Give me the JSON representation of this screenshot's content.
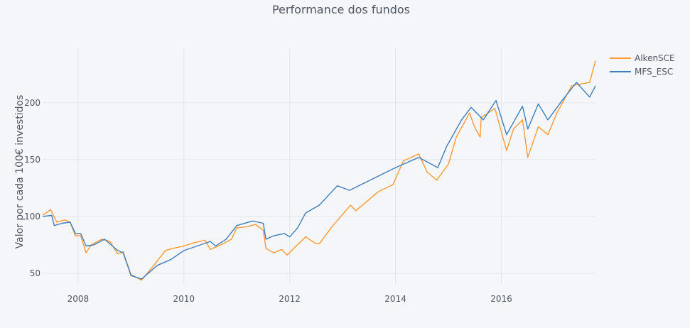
{
  "chart_data": {
    "type": "line",
    "title": "Performance dos fundos",
    "xlabel": "",
    "ylabel": "Valor por cada 100€ investidos",
    "xlim": [
      2007.33,
      2017.78
    ],
    "ylim": [
      40.6,
      248
    ],
    "grid": true,
    "legend_position": "top-right",
    "x_ticks": [
      2008,
      2010,
      2012,
      2014,
      2016
    ],
    "x_tick_labels": [
      "2008",
      "2010",
      "2012",
      "2014",
      "2016"
    ],
    "y_ticks": [
      50,
      100,
      150,
      200
    ],
    "y_tick_labels": [
      "50",
      "100",
      "150",
      "200"
    ],
    "series": [
      {
        "name": "AlkenSCE",
        "color": "#ff9933",
        "x": [
          2007.33,
          2007.48,
          2007.6,
          2007.75,
          2007.85,
          2007.95,
          2008.05,
          2008.15,
          2008.25,
          2008.45,
          2008.6,
          2008.75,
          2008.85,
          2009.0,
          2009.2,
          2009.45,
          2009.65,
          2009.8,
          2010.0,
          2010.2,
          2010.4,
          2010.5,
          2010.7,
          2010.9,
          2011.0,
          2011.2,
          2011.35,
          2011.5,
          2011.55,
          2011.7,
          2011.85,
          2011.95,
          2012.1,
          2012.3,
          2012.5,
          2012.56,
          2012.8,
          2013.15,
          2013.25,
          2013.68,
          2013.95,
          2014.15,
          2014.44,
          2014.6,
          2014.78,
          2015.0,
          2015.15,
          2015.4,
          2015.5,
          2015.6,
          2015.62,
          2015.88,
          2016.1,
          2016.23,
          2016.4,
          2016.5,
          2016.7,
          2016.88,
          2017.05,
          2017.33,
          2017.67,
          2017.78
        ],
        "values": [
          101,
          106,
          95,
          97,
          95,
          83,
          83,
          68,
          75,
          80,
          78,
          67,
          69,
          49,
          44,
          58,
          70,
          72,
          74,
          77,
          79,
          71,
          75,
          80,
          90,
          91,
          93,
          88,
          72,
          68,
          71,
          66,
          73,
          82,
          76,
          76,
          91,
          110,
          105,
          122,
          128,
          149,
          155,
          139,
          132,
          146,
          170,
          191,
          178,
          170,
          187,
          195,
          158,
          177,
          185,
          152,
          179,
          172,
          191,
          215,
          218,
          237
        ]
      },
      {
        "name": "MFS_ESC",
        "color": "#3d7ebf",
        "x": [
          2007.33,
          2007.5,
          2007.55,
          2007.7,
          2007.85,
          2007.95,
          2008.05,
          2008.15,
          2008.3,
          2008.5,
          2008.75,
          2008.85,
          2008.95,
          2009.0,
          2009.2,
          2009.5,
          2009.75,
          2010.0,
          2010.5,
          2010.6,
          2010.8,
          2011.0,
          2011.3,
          2011.5,
          2011.55,
          2011.7,
          2011.9,
          2012.0,
          2012.15,
          2012.3,
          2012.56,
          2012.9,
          2013.13,
          2014.0,
          2014.44,
          2014.8,
          2014.97,
          2015.25,
          2015.43,
          2015.66,
          2015.9,
          2016.1,
          2016.4,
          2016.5,
          2016.7,
          2016.88,
          2017.15,
          2017.42,
          2017.67,
          2017.78
        ],
        "values": [
          100,
          101,
          92,
          94,
          95,
          85,
          85,
          74,
          75,
          80,
          70,
          68,
          55,
          48,
          45,
          57,
          62,
          70,
          78,
          74,
          80,
          92,
          96,
          94,
          80,
          83,
          85,
          82,
          90,
          103,
          110,
          127,
          123,
          143,
          152,
          143,
          162,
          185,
          196,
          185,
          202,
          172,
          197,
          177,
          199,
          185,
          202,
          218,
          205,
          215
        ]
      }
    ]
  }
}
